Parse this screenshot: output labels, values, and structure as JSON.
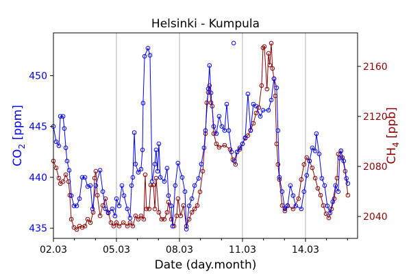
{
  "chart_data": {
    "type": "line",
    "title": "Helsinki - Kumpula",
    "xlabel": "Date (day.month)",
    "ylabel_left": {
      "main": "CO",
      "sub": "2",
      "unit": " [ppm]"
    },
    "ylabel_right": {
      "main": "CH",
      "sub": "4",
      "unit": " [ppb]"
    },
    "x_unit": "days since 02.03",
    "xlim": [
      0,
      14.48
    ],
    "x_ticks": [
      {
        "value": 0,
        "label": "02.03"
      },
      {
        "value": 3,
        "label": "05.03"
      },
      {
        "value": 6,
        "label": "08.03"
      },
      {
        "value": 9,
        "label": "11.03"
      },
      {
        "value": 12,
        "label": "14.03"
      }
    ],
    "x_minor_tick_step": 1,
    "grid": "vertical at major x ticks",
    "ylim_left": [
      434.0,
      454.2
    ],
    "yticks_left": [
      435,
      440,
      445,
      450
    ],
    "ylim_right": [
      2022.5,
      2186.8
    ],
    "yticks_right": [
      2040,
      2080,
      2120,
      2160
    ],
    "colors": {
      "co2": "#0000ff",
      "ch4": "#8b0000",
      "grid": "#b0b0b0"
    },
    "series": [
      {
        "name": "CO2",
        "axis": "left",
        "marker": "open-circle",
        "points": [
          [
            0.0,
            445.0
          ],
          [
            0.13,
            443.5
          ],
          [
            0.26,
            443.1
          ],
          [
            0.33,
            446.0
          ],
          [
            0.46,
            446.0
          ],
          [
            0.52,
            444.8
          ],
          [
            0.59,
            442.9
          ],
          [
            0.65,
            441.6
          ],
          [
            0.75,
            440.7
          ],
          [
            0.85,
            438.2
          ],
          [
            0.98,
            437.2
          ],
          [
            1.11,
            437.2
          ],
          [
            1.24,
            437.9
          ],
          [
            1.37,
            440.0
          ],
          [
            1.5,
            440.0
          ],
          [
            1.63,
            439.1
          ],
          [
            1.76,
            439.2
          ],
          [
            1.86,
            436.9
          ],
          [
            2.02,
            439.2
          ],
          [
            2.22,
            440.7
          ],
          [
            2.35,
            438.6
          ],
          [
            2.48,
            436.9
          ],
          [
            2.61,
            436.5
          ],
          [
            2.8,
            436.9
          ],
          [
            2.93,
            436.2
          ],
          [
            3.0,
            437.9
          ],
          [
            3.13,
            437.2
          ],
          [
            3.26,
            439.2
          ],
          [
            3.36,
            438.2
          ],
          [
            3.52,
            436.9
          ],
          [
            3.65,
            436.0
          ],
          [
            3.72,
            439.2
          ],
          [
            3.78,
            440.0
          ],
          [
            3.85,
            444.4
          ],
          [
            3.91,
            441.3
          ],
          [
            4.04,
            440.5
          ],
          [
            4.17,
            440.8
          ],
          [
            4.24,
            442.7
          ],
          [
            4.27,
            447.3
          ],
          [
            4.34,
            451.9
          ],
          [
            4.5,
            452.7
          ],
          [
            4.6,
            452.0
          ],
          [
            4.7,
            439.6
          ],
          [
            4.83,
            441.3
          ],
          [
            4.89,
            442.7
          ],
          [
            4.96,
            440.6
          ],
          [
            5.02,
            443.3
          ],
          [
            5.09,
            440.0
          ],
          [
            5.28,
            439.6
          ],
          [
            5.41,
            440.9
          ],
          [
            5.48,
            438.2
          ],
          [
            5.61,
            437.2
          ],
          [
            5.67,
            435.2
          ],
          [
            5.8,
            439.2
          ],
          [
            5.93,
            441.4
          ],
          [
            6.13,
            440.0
          ],
          [
            6.26,
            438.6
          ],
          [
            6.33,
            434.9
          ],
          [
            6.46,
            437.2
          ],
          [
            6.59,
            437.9
          ],
          [
            6.72,
            439.2
          ],
          [
            6.91,
            439.9
          ],
          [
            7.04,
            441.3
          ],
          [
            7.17,
            442.9
          ],
          [
            7.24,
            444.6
          ],
          [
            7.37,
            448.7
          ],
          [
            7.43,
            451.0
          ],
          [
            7.5,
            448.3
          ],
          [
            7.63,
            445.0
          ],
          [
            7.76,
            444.3
          ],
          [
            7.89,
            446.0
          ],
          [
            8.02,
            445.0
          ],
          [
            8.15,
            444.6
          ],
          [
            8.25,
            447.2
          ],
          [
            8.35,
            444.6
          ],
          [
            8.48,
            442.5
          ],
          [
            8.55,
            null
          ],
          [
            8.58,
            453.2
          ],
          [
            8.6,
            null
          ],
          [
            8.61,
            441.6
          ],
          [
            8.74,
            442.5
          ],
          [
            8.87,
            442.9
          ],
          [
            9.0,
            443.3
          ],
          [
            9.13,
            443.9
          ],
          [
            9.26,
            448.2
          ],
          [
            9.39,
            444.6
          ],
          [
            9.52,
            447.2
          ],
          [
            9.65,
            447.0
          ],
          [
            9.85,
            446.0
          ],
          [
            9.98,
            446.6
          ],
          [
            10.24,
            446.6
          ],
          [
            10.37,
            447.6
          ],
          [
            10.5,
            449.7
          ],
          [
            10.63,
            448.8
          ],
          [
            10.69,
            444.6
          ],
          [
            10.76,
            440.0
          ],
          [
            10.89,
            438.6
          ],
          [
            11.02,
            436.9
          ],
          [
            11.15,
            437.2
          ],
          [
            11.28,
            439.2
          ],
          [
            11.41,
            438.2
          ],
          [
            11.54,
            437.2
          ],
          [
            11.8,
            436.9
          ],
          [
            11.93,
            438.6
          ],
          [
            12.06,
            440.2
          ],
          [
            12.19,
            441.6
          ],
          [
            12.32,
            442.9
          ],
          [
            12.46,
            442.6
          ],
          [
            12.52,
            444.3
          ],
          [
            12.65,
            442.3
          ],
          [
            12.78,
            439.9
          ],
          [
            12.91,
            439.2
          ],
          [
            13.04,
            437.2
          ],
          [
            13.17,
            436.5
          ],
          [
            13.3,
            437.6
          ],
          [
            13.43,
            439.2
          ],
          [
            13.56,
            438.6
          ],
          [
            13.63,
            441.9
          ],
          [
            13.69,
            442.6
          ],
          [
            13.82,
            441.6
          ],
          [
            13.95,
            439.9
          ],
          [
            14.02,
            439.4
          ]
        ]
      },
      {
        "name": "CH4",
        "axis": "right",
        "marker": "open-circle",
        "points": [
          [
            0.0,
            2084.4
          ],
          [
            0.13,
            2078.9
          ],
          [
            0.26,
            2070.7
          ],
          [
            0.33,
            2066.3
          ],
          [
            0.46,
            2067.9
          ],
          [
            0.59,
            2073.4
          ],
          [
            0.72,
            2067.9
          ],
          [
            0.78,
            2057.0
          ],
          [
            0.85,
            2037.8
          ],
          [
            0.98,
            2031.2
          ],
          [
            1.11,
            2029.6
          ],
          [
            1.24,
            2032.3
          ],
          [
            1.37,
            2031.2
          ],
          [
            1.5,
            2032.3
          ],
          [
            1.63,
            2037.8
          ],
          [
            1.76,
            2035.1
          ],
          [
            1.89,
            2043.3
          ],
          [
            1.96,
            2070.7
          ],
          [
            2.02,
            2076.2
          ],
          [
            2.09,
            2057.0
          ],
          [
            2.22,
            2040.5
          ],
          [
            2.35,
            2048.8
          ],
          [
            2.48,
            2054.2
          ],
          [
            2.61,
            2043.3
          ],
          [
            2.74,
            2035.1
          ],
          [
            2.87,
            2032.3
          ],
          [
            3.0,
            2035.1
          ],
          [
            3.13,
            2032.3
          ],
          [
            3.33,
            2035.1
          ],
          [
            3.52,
            2032.3
          ],
          [
            3.65,
            2035.1
          ],
          [
            3.78,
            2032.3
          ],
          [
            3.91,
            2040.5
          ],
          [
            4.04,
            2037.8
          ],
          [
            4.17,
            2040.5
          ],
          [
            4.3,
            2037.8
          ],
          [
            4.37,
            2073.4
          ],
          [
            4.43,
            2046.0
          ],
          [
            4.56,
            2046.0
          ],
          [
            4.63,
            2065.2
          ],
          [
            4.76,
            2065.2
          ],
          [
            4.83,
            2046.0
          ],
          [
            4.89,
            2070.7
          ],
          [
            5.02,
            2043.3
          ],
          [
            5.15,
            2037.8
          ],
          [
            5.28,
            2037.8
          ],
          [
            5.41,
            2043.3
          ],
          [
            5.48,
            2051.5
          ],
          [
            5.61,
            2037.8
          ],
          [
            5.74,
            2032.3
          ],
          [
            5.87,
            2040.5
          ],
          [
            5.93,
            2054.2
          ],
          [
            6.06,
            2040.5
          ],
          [
            6.19,
            2048.8
          ],
          [
            6.33,
            2032.3
          ],
          [
            6.46,
            2037.8
          ],
          [
            6.59,
            2043.3
          ],
          [
            6.72,
            2046.0
          ],
          [
            6.85,
            2048.8
          ],
          [
            6.98,
            2059.7
          ],
          [
            7.11,
            2076.2
          ],
          [
            7.24,
            2106.3
          ],
          [
            7.3,
            2131.0
          ],
          [
            7.37,
            2139.2
          ],
          [
            7.43,
            2144.7
          ],
          [
            7.5,
            2131.0
          ],
          [
            7.56,
            2128.2
          ],
          [
            7.63,
            2106.3
          ],
          [
            7.76,
            2098.1
          ],
          [
            7.89,
            2095.3
          ],
          [
            8.15,
            2097.0
          ],
          [
            8.41,
            2093.7
          ],
          [
            8.54,
            2085.5
          ],
          [
            8.67,
            2081.6
          ],
          [
            8.74,
            2091.5
          ],
          [
            8.87,
            2093.7
          ],
          [
            9.0,
            2098.1
          ],
          [
            9.13,
            2102.5
          ],
          [
            9.26,
            2104.7
          ],
          [
            9.39,
            2109.0
          ],
          [
            9.52,
            2114.5
          ],
          [
            9.65,
            2122.7
          ],
          [
            9.78,
            2127.1
          ],
          [
            9.91,
            2144.7
          ],
          [
            9.98,
            2174.8
          ],
          [
            10.04,
            2175.9
          ],
          [
            10.17,
            2141.9
          ],
          [
            10.24,
            2170.4
          ],
          [
            10.3,
            2161.1
          ],
          [
            10.37,
            2178.6
          ],
          [
            10.43,
            2158.4
          ],
          [
            10.5,
            2150.1
          ],
          [
            10.56,
            2136.4
          ],
          [
            10.63,
            2098.1
          ],
          [
            10.69,
            2081.6
          ],
          [
            10.76,
            2069.6
          ],
          [
            10.89,
            2048.8
          ],
          [
            11.02,
            2044.4
          ],
          [
            11.15,
            2048.8
          ],
          [
            11.41,
            2046.0
          ],
          [
            11.67,
            2054.2
          ],
          [
            11.8,
            2069.6
          ],
          [
            11.93,
            2081.6
          ],
          [
            12.06,
            2087.1
          ],
          [
            12.19,
            2084.4
          ],
          [
            12.32,
            2078.9
          ],
          [
            12.46,
            2070.7
          ],
          [
            12.59,
            2062.5
          ],
          [
            12.72,
            2057.0
          ],
          [
            12.85,
            2048.8
          ],
          [
            12.98,
            2042.2
          ],
          [
            13.11,
            2038.9
          ],
          [
            13.24,
            2046.0
          ],
          [
            13.37,
            2054.2
          ],
          [
            13.5,
            2070.7
          ],
          [
            13.56,
            2089.9
          ],
          [
            13.69,
            2092.6
          ],
          [
            13.76,
            2087.1
          ],
          [
            13.89,
            2076.2
          ],
          [
            14.02,
            2057.0
          ]
        ]
      }
    ]
  }
}
